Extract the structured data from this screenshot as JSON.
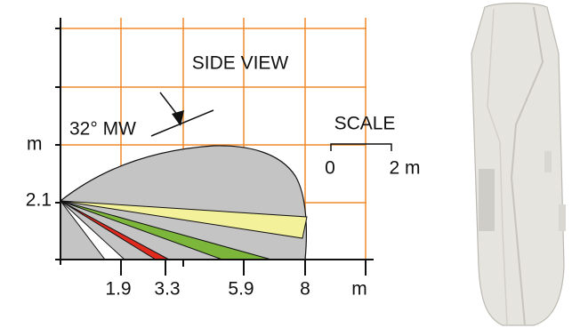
{
  "title": "SIDE VIEW",
  "annotation": "32° MW",
  "scale": {
    "label": "SCALE",
    "start": "0",
    "end": "2 m"
  },
  "y_axis": {
    "unit": "m",
    "labels": [
      2.1
    ]
  },
  "x_axis": {
    "labels": [
      1.9,
      3.3,
      5.9,
      8
    ],
    "unit": "m"
  }
}
